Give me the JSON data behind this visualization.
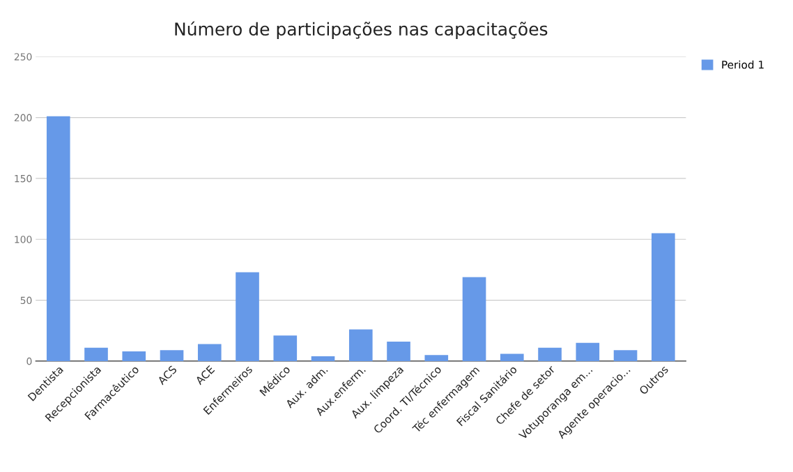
{
  "chart_data": {
    "type": "bar",
    "title": "Número de participações nas capacitações",
    "categories": [
      "Dentista",
      "Recepcionista",
      "Farmacêutico",
      "ACS",
      "ACE",
      "Enfermeiros",
      "Médico",
      "Aux. adm.",
      "Aux.enferm.",
      "Aux. limpeza",
      "Coord. TI/Técnico",
      "Téc enfermagem",
      "Fiscal Sanitário",
      "Chefe de setor",
      "Votuporanga em...",
      "Agente operacio...",
      "Outros"
    ],
    "series": [
      {
        "name": "Period 1",
        "color": "#6699e8",
        "values": [
          201,
          11,
          8,
          9,
          14,
          73,
          21,
          4,
          26,
          16,
          5,
          69,
          6,
          11,
          15,
          9,
          105
        ]
      }
    ],
    "ylim": [
      0,
      250
    ],
    "yticks": [
      0,
      50,
      100,
      150,
      200,
      250
    ],
    "grid": "y",
    "legend": "top right"
  }
}
